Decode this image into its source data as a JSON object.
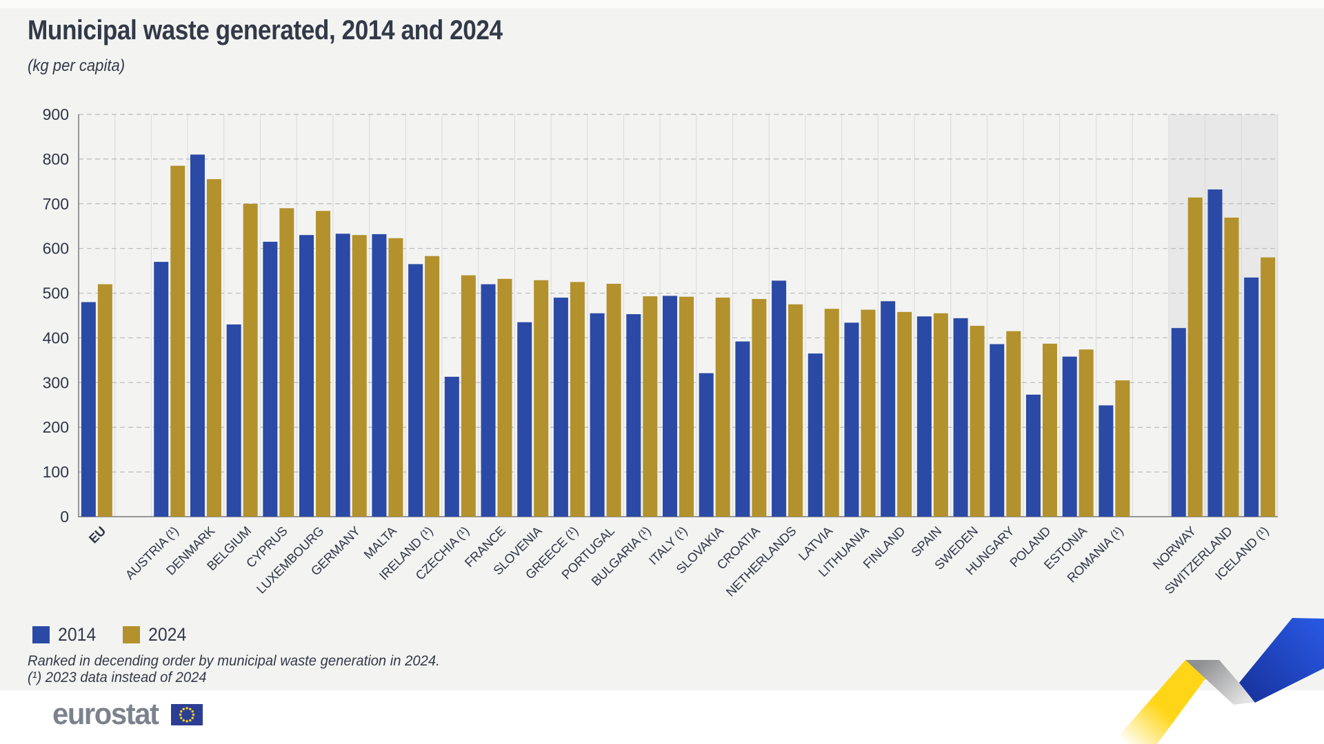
{
  "header": {
    "title": "Municipal waste generated, 2014 and 2024",
    "subtitle": "(kg per capita)"
  },
  "chart_data": {
    "type": "bar",
    "title": "Municipal waste generated, 2014 and 2024",
    "unit": "kg per capita",
    "categories": [
      "EU",
      "AUSTRIA (¹)",
      "DENMARK",
      "BELGIUM",
      "CYPRUS",
      "LUXEMBOURG",
      "GERMANY",
      "MALTA",
      "IRELAND (¹)",
      "CZECHIA (¹)",
      "FRANCE",
      "SLOVENIA",
      "GREECE (¹)",
      "PORTUGAL",
      "BULGARIA (¹)",
      "ITALY (¹)",
      "SLOVAKIA",
      "CROATIA",
      "NETHERLANDS",
      "LATVIA",
      "LITHUANIA",
      "FINLAND",
      "SPAIN",
      "SWEDEN",
      "HUNGARY",
      "POLAND",
      "ESTONIA",
      "ROMANIA (¹)",
      "NORWAY",
      "SWITZERLAND",
      "ICELAND (¹)"
    ],
    "series": [
      {
        "name": "2014",
        "color": "#2b4aa6",
        "values": [
          480,
          570,
          810,
          430,
          615,
          630,
          633,
          632,
          565,
          313,
          520,
          435,
          490,
          455,
          453,
          494,
          321,
          392,
          528,
          365,
          434,
          482,
          448,
          444,
          386,
          273,
          358,
          249,
          422,
          732,
          535
        ]
      },
      {
        "name": "2024",
        "color": "#b3912c",
        "values": [
          520,
          785,
          755,
          700,
          690,
          684,
          630,
          623,
          583,
          540,
          532,
          529,
          525,
          521,
          493,
          492,
          490,
          487,
          475,
          465,
          463,
          458,
          455,
          427,
          415,
          387,
          374,
          305,
          714,
          669,
          580
        ]
      }
    ],
    "ylim": [
      0,
      900
    ],
    "yticks": [
      0,
      100,
      200,
      300,
      400,
      500,
      600,
      700,
      800,
      900
    ],
    "grid": "horizontal-dashed",
    "legend_position": "bottom-left",
    "gap_after_indices": [
      0,
      27
    ],
    "highlight_from_index": 28,
    "highlight_color": "#e7e8e7",
    "bold_categories": [
      "EU"
    ],
    "text_color": "#2e3544",
    "gridline_color": "#b9babd",
    "column_line_color": "#d8d9da",
    "axis_color": "#77787b"
  },
  "legend": {
    "items": [
      {
        "label": "2014",
        "color": "#2b4aa6"
      },
      {
        "label": "2024",
        "color": "#b3912c"
      }
    ]
  },
  "footnotes": {
    "line1": "Ranked in decending order by municipal waste generation in 2024.",
    "line2": "(¹) 2023 data instead of 2024"
  },
  "footer": {
    "logo_text": "eurostat",
    "flag_blue": "#2c3e94",
    "flag_star_color": "#ffd617"
  },
  "decoration": {
    "yellow": "#ffd617",
    "yellow_fade": "#ffffff",
    "gray_dark": "#8f9092",
    "gray_light": "#e3e3e3",
    "blue_dark": "#18339f",
    "blue_bright": "#2757e0"
  }
}
